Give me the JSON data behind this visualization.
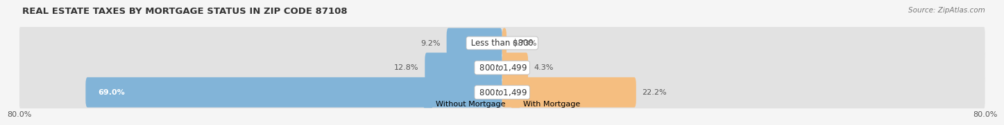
{
  "title": "REAL ESTATE TAXES BY MORTGAGE STATUS IN ZIP CODE 87108",
  "source": "Source: ZipAtlas.com",
  "rows": [
    {
      "label": "Less than $800",
      "without": 9.2,
      "with": 0.73
    },
    {
      "label": "$800 to $1,499",
      "without": 12.8,
      "with": 4.3
    },
    {
      "label": "$800 to $1,499",
      "without": 69.0,
      "with": 22.2
    }
  ],
  "color_without": "#82B4D8",
  "color_with": "#F5BE80",
  "bar_bg_color": "#E2E2E2",
  "xlim": [
    -80,
    80
  ],
  "xticklabels_left": "80.0%",
  "xticklabels_right": "80.0%",
  "bar_height": 0.72,
  "bg_color": "#F5F5F5",
  "title_fontsize": 9.5,
  "label_fontsize": 8.5,
  "pct_fontsize": 8.0,
  "tick_fontsize": 8.0,
  "legend_fontsize": 8.0,
  "source_fontsize": 7.5,
  "row_labels_color": "#333333",
  "pct_color_outside": "#555555",
  "pct_color_inside": "#ffffff"
}
